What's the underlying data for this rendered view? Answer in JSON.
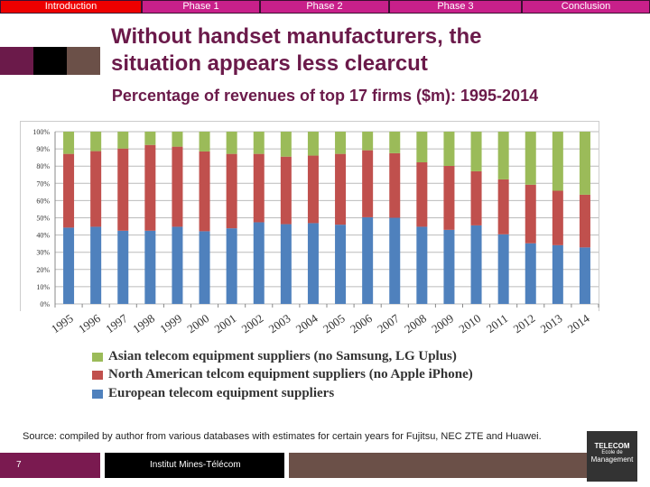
{
  "nav": {
    "tabs": [
      {
        "label": "Introduction",
        "active": true
      },
      {
        "label": "Phase 1"
      },
      {
        "label": "Phase 2"
      },
      {
        "label": "Phase 3"
      },
      {
        "label": "Conclusion"
      }
    ]
  },
  "title_lines": [
    "Without handset manufacturers, the",
    "situation appears less clearcut"
  ],
  "subtitle": "Percentage of revenues of top 17 firms ($m): 1995-2014",
  "chart_data": {
    "type": "bar",
    "stacked": true,
    "percent": true,
    "categories": [
      "1995",
      "1996",
      "1997",
      "1998",
      "1999",
      "2000",
      "2001",
      "2002",
      "2003",
      "2004",
      "2005",
      "2006",
      "2007",
      "2008",
      "2009",
      "2010",
      "2011",
      "2012",
      "2013",
      "2014"
    ],
    "yticks": [
      "0%",
      "10%",
      "20%",
      "30%",
      "40%",
      "50%",
      "60%",
      "70%",
      "80%",
      "90%",
      "100%"
    ],
    "ylim": [
      0,
      100
    ],
    "grid": true,
    "legend": "bottom",
    "series": [
      {
        "name": "European telecom equipment suppliers",
        "color": "#4f81bd",
        "values": [
          44.3,
          44.8,
          42.5,
          42.5,
          44.8,
          42.2,
          43.9,
          47.4,
          46.3,
          46.9,
          46.0,
          50.3,
          50.0,
          44.8,
          43.0,
          45.6,
          40.4,
          35.2,
          34.1,
          32.8
        ]
      },
      {
        "name": "North American telcom equipment suppliers (no Apple iPhone)",
        "color": "#c0504d",
        "values": [
          42.8,
          43.9,
          47.7,
          49.8,
          46.5,
          46.3,
          43.2,
          39.7,
          39.2,
          39.2,
          41.1,
          38.9,
          37.5,
          37.4,
          37.1,
          31.4,
          31.9,
          34.0,
          31.6,
          30.6
        ]
      },
      {
        "name": "Asian telecom equipment suppliers (no Samsung, LG Uplus)",
        "color": "#9bbb59",
        "values": [
          12.9,
          11.3,
          9.8,
          7.7,
          8.7,
          11.5,
          12.9,
          12.9,
          14.5,
          13.9,
          12.9,
          10.8,
          12.5,
          17.8,
          19.9,
          23.0,
          27.7,
          30.8,
          34.3,
          36.6
        ]
      }
    ]
  },
  "source": "Source: compiled by author from various databases with estimates for certain years for Fujitsu, NEC ZTE and Huawei.",
  "footer": {
    "page": "7",
    "institution": "Institut Mines-Télécom"
  },
  "logo": {
    "line1": "TELECOM",
    "line2": "Ecole de",
    "line3": "Management"
  }
}
